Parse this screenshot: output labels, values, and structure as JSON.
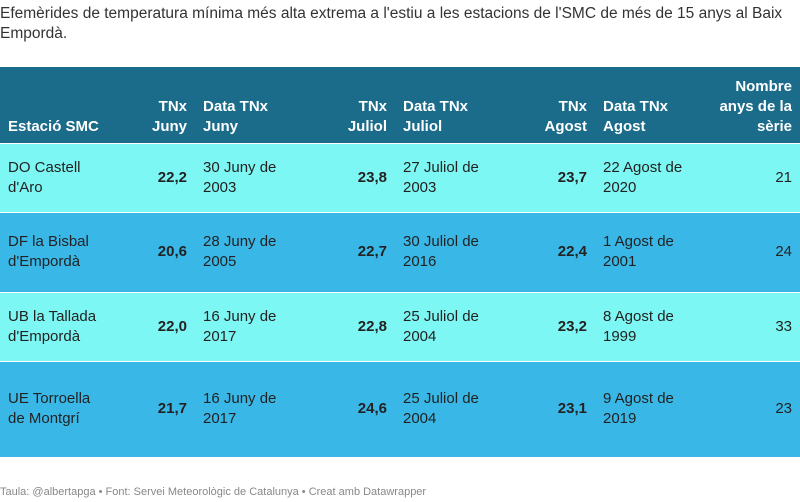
{
  "title": "Efemèrides de temperatura mínima més alta extrema a l'estiu a les estacions de l'SMC de més de 15 anys al Baix Empordà.",
  "columns": [
    {
      "label": "Estació SMC",
      "align": "left"
    },
    {
      "label": "TNx Juny",
      "align": "right"
    },
    {
      "label": "Data TNx Juny",
      "align": "left"
    },
    {
      "label": "TNx Juliol",
      "align": "right"
    },
    {
      "label": "Data TNx Juliol",
      "align": "left"
    },
    {
      "label": "TNx Agost",
      "align": "right"
    },
    {
      "label": "Data TNx Agost",
      "align": "left"
    },
    {
      "label": "Nombre anys de la sèrie",
      "align": "right"
    }
  ],
  "rows": [
    [
      "DO Castell d'Aro",
      "22,2",
      "30 Juny de 2003",
      "23,8",
      "27 Juliol de 2003",
      "23,7",
      "22 Agost de 2020",
      "21"
    ],
    [
      "DF la Bisbal d'Empordà",
      "20,6",
      "28 Juny de 2005",
      "22,7",
      "30 Juliol de 2016",
      "22,4",
      "1 Agost de 2001",
      "24"
    ],
    [
      "UB la Tallada d'Empordà",
      "22,0",
      "16 Juny de 2017",
      "22,8",
      "25 Juliol de 2004",
      "23,2",
      "8 Agost de 1999",
      "33"
    ],
    [
      "UE Torroella de Montgrí",
      "21,7",
      "16 Juny de 2017",
      "24,6",
      "25 Juliol de 2004",
      "23,1",
      "9 Agost de 2019",
      "23"
    ]
  ],
  "colors": {
    "header": "#1b6b8a",
    "row_light": "#7df7f3",
    "row_dark": "#39b8e8"
  },
  "footer": "Taula: @albertapga • Font: Servei Meteorològic de Catalunya • Creat amb Datawrapper"
}
